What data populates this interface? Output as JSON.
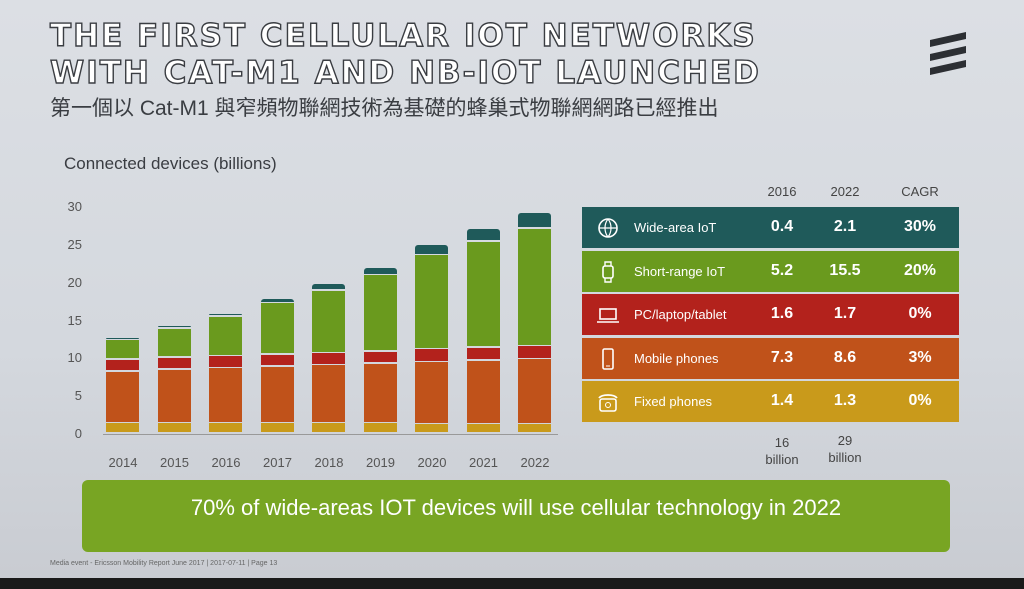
{
  "title_line1": "THE FIRST CELLULAR IOT NETWORKS",
  "title_line2": "WITH CAT-M1 AND NB-IOT LAUNCHED",
  "subtitle": "第一個以 Cat-M1 與窄頻物聯網技術為基礎的蜂巢式物聯網網路已經推出",
  "logo": "Ericsson",
  "chart_data": {
    "type": "bar",
    "stacked": true,
    "ylabel": "Connected devices (billions)",
    "ylim": [
      0,
      30
    ],
    "yticks": [
      "0",
      "5",
      "10",
      "15",
      "20",
      "25",
      "30"
    ],
    "categories": [
      "2014",
      "2015",
      "2016",
      "2017",
      "2018",
      "2019",
      "2020",
      "2021",
      "2022"
    ],
    "series": [
      {
        "name": "Fixed phones",
        "color": "#c99a1b",
        "values": [
          1.4,
          1.4,
          1.4,
          1.4,
          1.4,
          1.4,
          1.3,
          1.3,
          1.3
        ]
      },
      {
        "name": "Mobile phones",
        "color": "#c0521a",
        "values": [
          6.8,
          7.1,
          7.3,
          7.5,
          7.7,
          7.9,
          8.2,
          8.4,
          8.6
        ]
      },
      {
        "name": "PC/laptop/tablet",
        "color": "#b3221c",
        "values": [
          1.6,
          1.6,
          1.6,
          1.6,
          1.6,
          1.6,
          1.7,
          1.7,
          1.7
        ]
      },
      {
        "name": "Short-range IoT",
        "color": "#6a9a1e",
        "values": [
          2.6,
          3.8,
          5.2,
          6.8,
          8.2,
          10.1,
          12.4,
          14.0,
          15.5
        ]
      },
      {
        "name": "Wide-area IoT",
        "color": "#1f5a5a",
        "values": [
          0.3,
          0.4,
          0.4,
          0.6,
          0.9,
          1.0,
          1.4,
          1.7,
          2.1
        ]
      }
    ]
  },
  "table": {
    "headers": [
      "2016",
      "2022",
      "CAGR"
    ],
    "rows": [
      {
        "label": "Wide-area IoT",
        "icon": "globe-icon",
        "color": "#1f5a5a",
        "v2016": "0.4",
        "v2022": "2.1",
        "cagr": "30%"
      },
      {
        "label": "Short-range IoT",
        "icon": "watch-icon",
        "color": "#6a9a1e",
        "v2016": "5.2",
        "v2022": "15.5",
        "cagr": "20%"
      },
      {
        "label": "PC/laptop/tablet",
        "icon": "laptop-icon",
        "color": "#b3221c",
        "v2016": "1.6",
        "v2022": "1.7",
        "cagr": "0%"
      },
      {
        "label": "Mobile phones",
        "icon": "mobile-phone-icon",
        "color": "#c0521a",
        "v2016": "7.3",
        "v2022": "8.6",
        "cagr": "3%"
      },
      {
        "label": "Fixed phones",
        "icon": "fixed-phone-icon",
        "color": "#c99a1b",
        "v2016": "1.4",
        "v2022": "1.3",
        "cagr": "0%"
      }
    ],
    "totals": [
      {
        "value": "16",
        "unit": "billion"
      },
      {
        "value": "29",
        "unit": "billion"
      }
    ]
  },
  "banner": "70% of wide-areas IOT devices will use cellular technology in 2022",
  "footer": "Media event - Ericsson Mobility Report June 2017 | 2017-07-11 | Page 13"
}
